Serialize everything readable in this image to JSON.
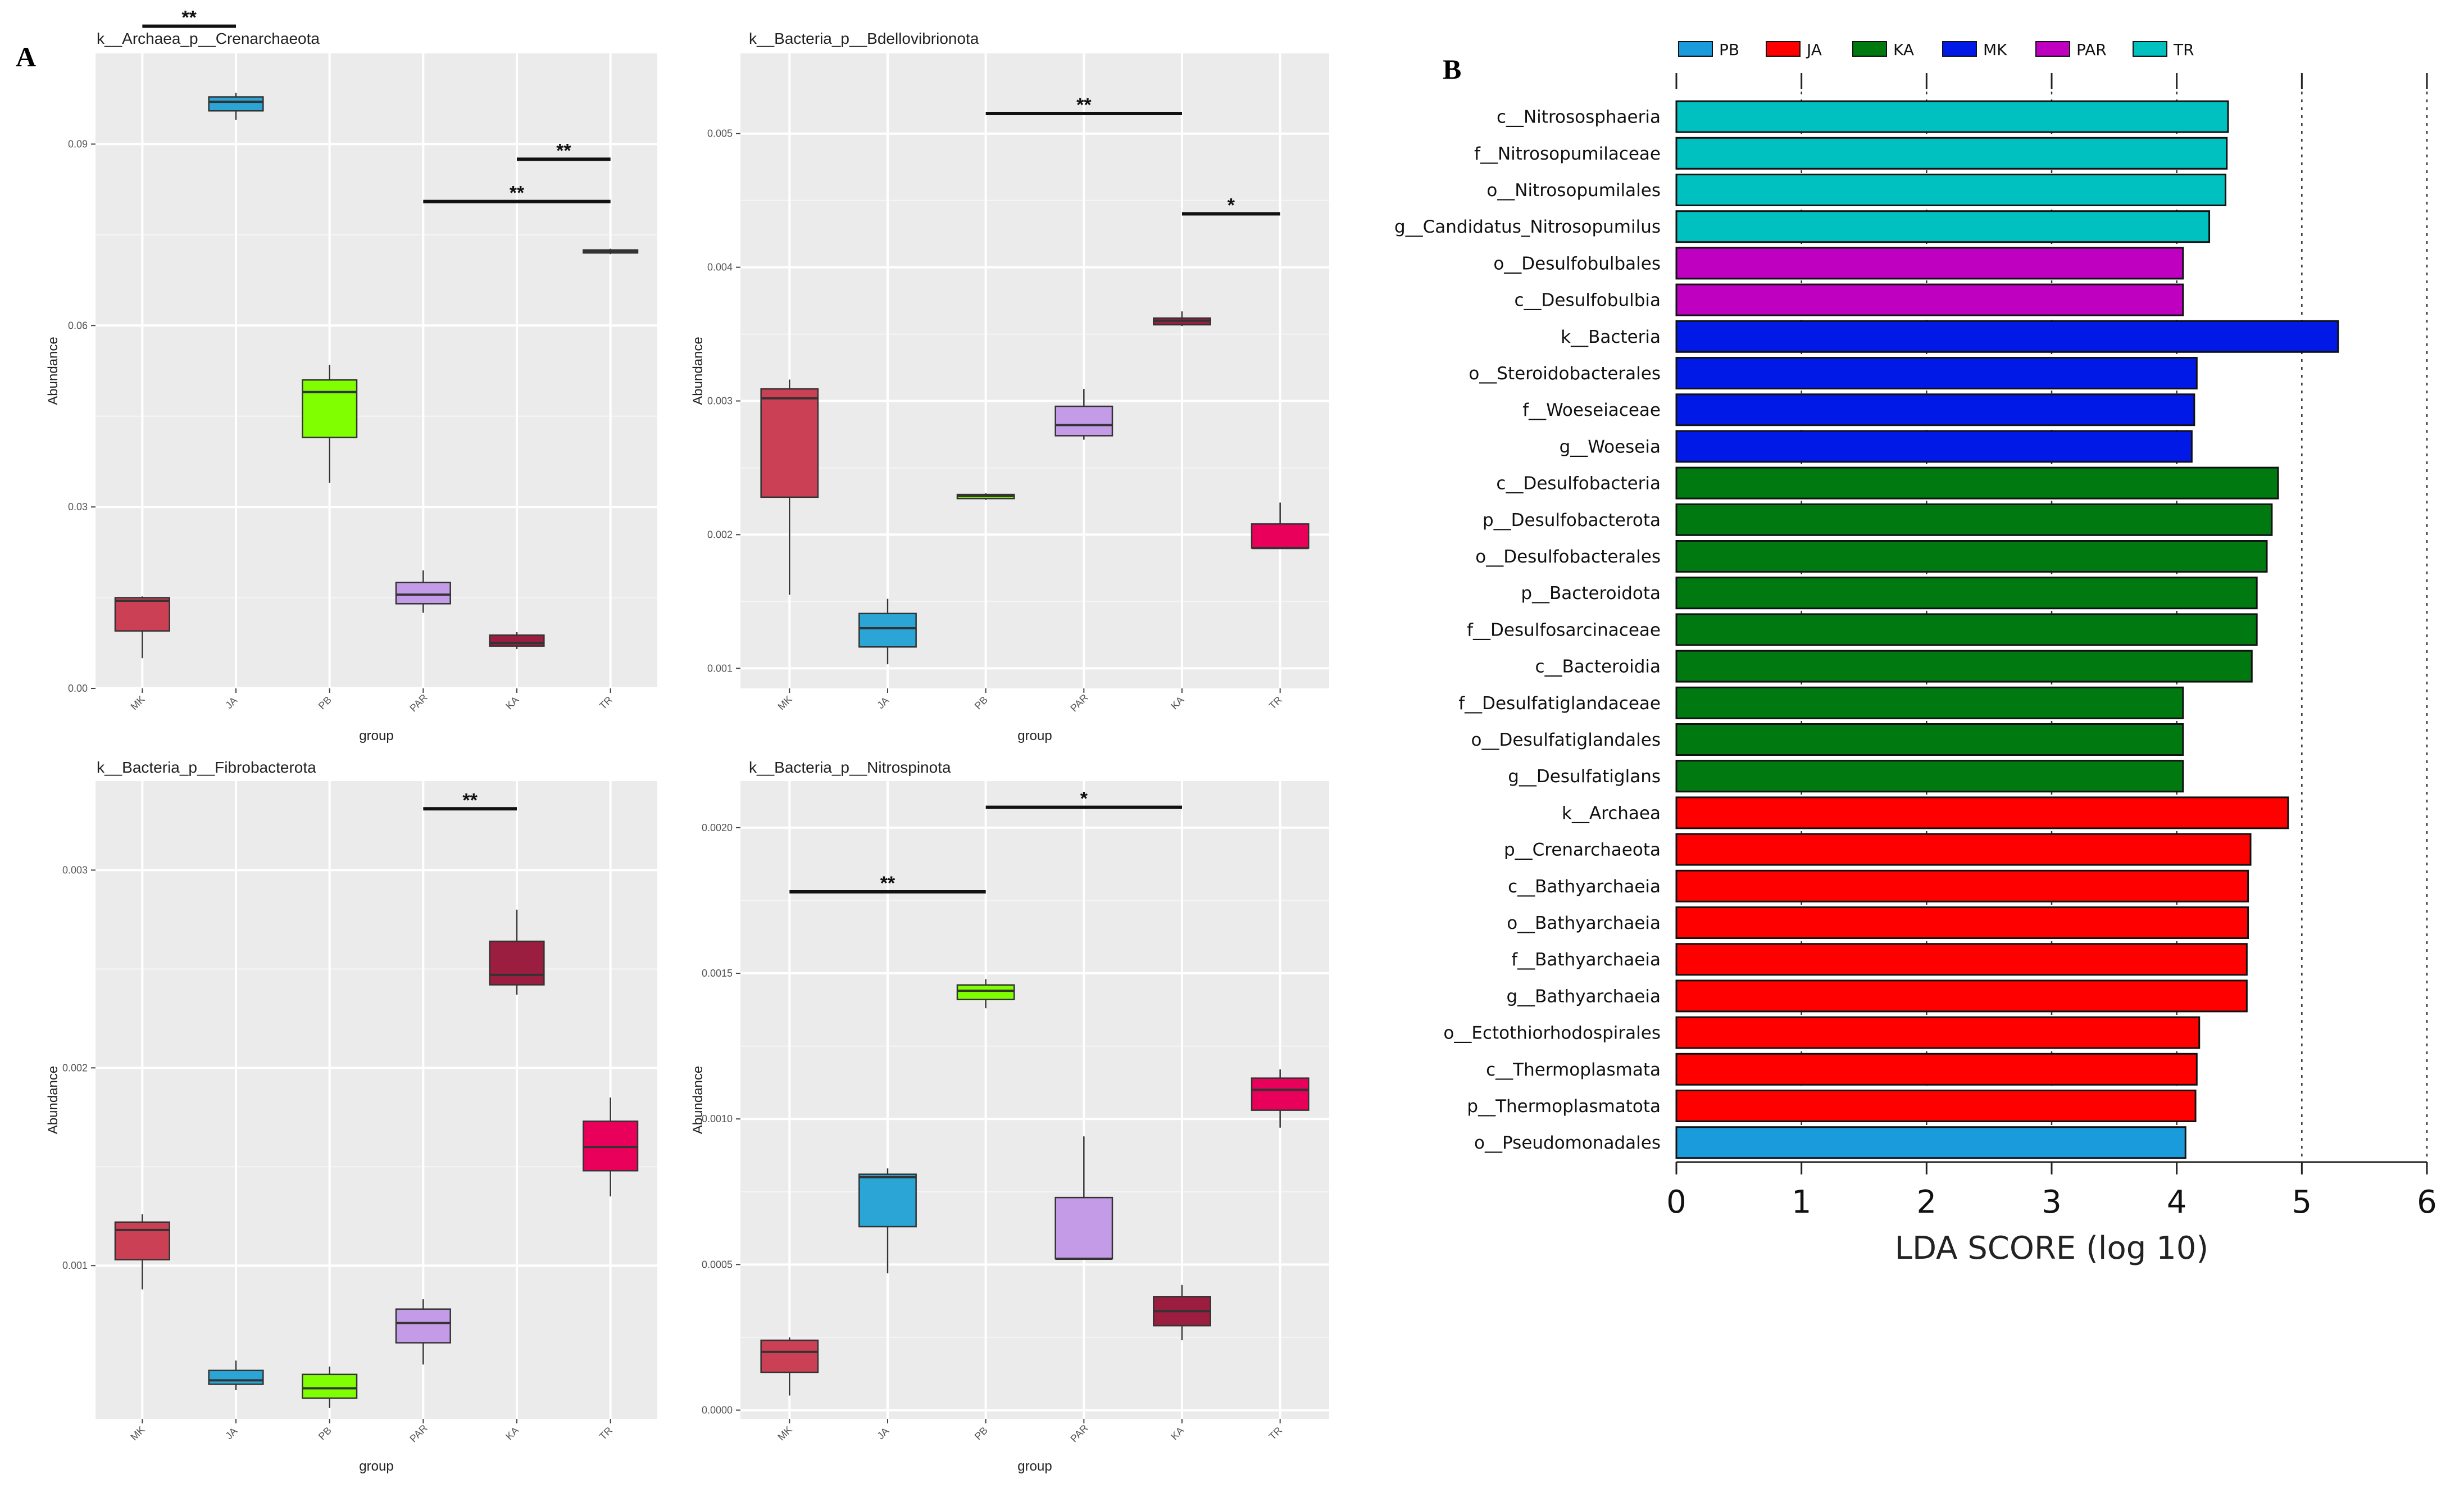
{
  "panel_labels": {
    "A": "A",
    "B": "B"
  },
  "chart_data": [
    {
      "type": "boxplot",
      "title": "k__Archaea_p__Crenarchaeota",
      "xlabel": "group",
      "ylabel": "Abundance",
      "categories": [
        "MK",
        "JA",
        "PB",
        "PAR",
        "KA",
        "TR"
      ],
      "colors": [
        "#cc4055",
        "#2aa5d5",
        "#7fff00",
        "#c39be6",
        "#9b1d3f",
        "#e8005a"
      ],
      "ylim": [
        0,
        0.105
      ],
      "yticks": [
        0,
        0.03,
        0.06,
        0.09
      ],
      "ytick_labels": [
        "0.00",
        "0.03",
        "0.06",
        "0.09"
      ],
      "boxes": [
        {
          "min": 0.005,
          "q1": 0.0095,
          "median": 0.0145,
          "q3": 0.015,
          "max": 0.0152
        },
        {
          "min": 0.094,
          "q1": 0.0955,
          "median": 0.097,
          "q3": 0.0978,
          "max": 0.0985
        },
        {
          "min": 0.034,
          "q1": 0.0415,
          "median": 0.049,
          "q3": 0.051,
          "max": 0.0535
        },
        {
          "min": 0.0125,
          "q1": 0.014,
          "median": 0.0155,
          "q3": 0.0175,
          "max": 0.0195
        },
        {
          "min": 0.0065,
          "q1": 0.007,
          "median": 0.0075,
          "q3": 0.0088,
          "max": 0.0093
        },
        {
          "min": 0.0718,
          "q1": 0.072,
          "median": 0.0723,
          "q3": 0.0725,
          "max": 0.0727
        }
      ],
      "significance": [
        {
          "from": "MK",
          "to": "JA",
          "label": "**",
          "y": 0.1095
        },
        {
          "from": "KA",
          "to": "TR",
          "label": "**",
          "y": 0.0875
        },
        {
          "from": "PAR",
          "to": "TR",
          "label": "**",
          "y": 0.0805
        }
      ]
    },
    {
      "type": "boxplot",
      "title": "k__Bacteria_p__Bdellovibrionota",
      "xlabel": "group",
      "ylabel": "Abundance",
      "categories": [
        "MK",
        "JA",
        "PB",
        "PAR",
        "KA",
        "TR"
      ],
      "colors": [
        "#cc4055",
        "#2aa5d5",
        "#7fff00",
        "#c39be6",
        "#9b1d3f",
        "#e8005a"
      ],
      "ylim": [
        0.00085,
        0.0056
      ],
      "yticks": [
        0.001,
        0.002,
        0.003,
        0.004,
        0.005
      ],
      "ytick_labels": [
        "0.001",
        "0.002",
        "0.003",
        "0.004",
        "0.005"
      ],
      "boxes": [
        {
          "min": 0.00155,
          "q1": 0.00228,
          "median": 0.00302,
          "q3": 0.00309,
          "max": 0.00316
        },
        {
          "min": 0.00103,
          "q1": 0.00116,
          "median": 0.0013,
          "q3": 0.00141,
          "max": 0.00152
        },
        {
          "min": 0.00226,
          "q1": 0.00227,
          "median": 0.00229,
          "q3": 0.0023,
          "max": 0.00231
        },
        {
          "min": 0.00271,
          "q1": 0.00274,
          "median": 0.00282,
          "q3": 0.00296,
          "max": 0.00309
        },
        {
          "min": 0.00356,
          "q1": 0.00357,
          "median": 0.0036,
          "q3": 0.00362,
          "max": 0.00367
        },
        {
          "min": 0.0019,
          "q1": 0.0019,
          "median": 0.0019,
          "q3": 0.00208,
          "max": 0.00224
        }
      ],
      "significance": [
        {
          "from": "PB",
          "to": "KA",
          "label": "**",
          "y": 0.00515
        },
        {
          "from": "KA",
          "to": "TR",
          "label": "*",
          "y": 0.0044
        }
      ]
    },
    {
      "type": "boxplot",
      "title": "k__Bacteria_p__Fibrobacterota",
      "xlabel": "group",
      "ylabel": "Abundance",
      "categories": [
        "MK",
        "JA",
        "PB",
        "PAR",
        "KA",
        "TR"
      ],
      "colors": [
        "#cc4055",
        "#2aa5d5",
        "#7fff00",
        "#c39be6",
        "#9b1d3f",
        "#e8005a"
      ],
      "ylim": [
        0.000225,
        0.00345
      ],
      "yticks": [
        0.001,
        0.002,
        0.003
      ],
      "ytick_labels": [
        "0.001",
        "0.002",
        "0.003"
      ],
      "boxes": [
        {
          "min": 0.00088,
          "q1": 0.00103,
          "median": 0.00118,
          "q3": 0.00122,
          "max": 0.00126
        },
        {
          "min": 0.00037,
          "q1": 0.0004,
          "median": 0.00042,
          "q3": 0.00047,
          "max": 0.00052
        },
        {
          "min": 0.00028,
          "q1": 0.00033,
          "median": 0.00038,
          "q3": 0.00045,
          "max": 0.00049
        },
        {
          "min": 0.0005,
          "q1": 0.00061,
          "median": 0.00071,
          "q3": 0.00078,
          "max": 0.00083
        },
        {
          "min": 0.00237,
          "q1": 0.00242,
          "median": 0.00247,
          "q3": 0.00264,
          "max": 0.0028
        },
        {
          "min": 0.00135,
          "q1": 0.00148,
          "median": 0.0016,
          "q3": 0.00173,
          "max": 0.00185
        }
      ],
      "significance": [
        {
          "from": "PAR",
          "to": "KA",
          "label": "**",
          "y": 0.00331
        }
      ]
    },
    {
      "type": "boxplot",
      "title": "k__Bacteria_p__Nitrospinota",
      "xlabel": "group",
      "ylabel": "Abundance",
      "categories": [
        "MK",
        "JA",
        "PB",
        "PAR",
        "KA",
        "TR"
      ],
      "colors": [
        "#cc4055",
        "#2aa5d5",
        "#7fff00",
        "#c39be6",
        "#9b1d3f",
        "#e8005a"
      ],
      "ylim": [
        -3e-05,
        0.00216
      ],
      "yticks": [
        0,
        0.0005,
        0.001,
        0.0015,
        0.002
      ],
      "ytick_labels": [
        "0.0000",
        "0.0005",
        "0.0010",
        "0.0015",
        "0.0020"
      ],
      "boxes": [
        {
          "min": 5e-05,
          "q1": 0.00013,
          "median": 0.0002,
          "q3": 0.00024,
          "max": 0.00025
        },
        {
          "min": 0.00047,
          "q1": 0.00063,
          "median": 0.0008,
          "q3": 0.00081,
          "max": 0.00083
        },
        {
          "min": 0.00138,
          "q1": 0.00141,
          "median": 0.00144,
          "q3": 0.00146,
          "max": 0.00148
        },
        {
          "min": 0.00052,
          "q1": 0.00052,
          "median": 0.00052,
          "q3": 0.00073,
          "max": 0.00094
        },
        {
          "min": 0.00024,
          "q1": 0.00029,
          "median": 0.00034,
          "q3": 0.00039,
          "max": 0.00043
        },
        {
          "min": 0.00097,
          "q1": 0.00103,
          "median": 0.0011,
          "q3": 0.00114,
          "max": 0.00117
        }
      ],
      "significance": [
        {
          "from": "MK",
          "to": "PB",
          "label": "**",
          "y": 0.00178
        },
        {
          "from": "PB",
          "to": "KA",
          "label": "*",
          "y": 0.00207
        }
      ]
    },
    {
      "type": "bar",
      "orientation": "horizontal",
      "xlabel": "LDA SCORE (log 10)",
      "xlim": [
        0,
        6
      ],
      "xticks": [
        0,
        1,
        2,
        3,
        4,
        5,
        6
      ],
      "legend": [
        {
          "name": "PB",
          "color": "#1a9bdc"
        },
        {
          "name": "JA",
          "color": "#ff0000"
        },
        {
          "name": "KA",
          "color": "#007a10"
        },
        {
          "name": "MK",
          "color": "#0019e6"
        },
        {
          "name": "PAR",
          "color": "#c000c0"
        },
        {
          "name": "TR",
          "color": "#00c0c0"
        }
      ],
      "bars": [
        {
          "label": "c__Nitrososphaeria",
          "value": 4.41,
          "group": "TR"
        },
        {
          "label": "f__Nitrosopumilaceae",
          "value": 4.4,
          "group": "TR"
        },
        {
          "label": "o__Nitrosopumilales",
          "value": 4.39,
          "group": "TR"
        },
        {
          "label": "g__Candidatus_Nitrosopumilus",
          "value": 4.26,
          "group": "TR"
        },
        {
          "label": "o__Desulfobulbales",
          "value": 4.05,
          "group": "PAR"
        },
        {
          "label": "c__Desulfobulbia",
          "value": 4.05,
          "group": "PAR"
        },
        {
          "label": "k__Bacteria",
          "value": 5.29,
          "group": "MK"
        },
        {
          "label": "o__Steroidobacterales",
          "value": 4.16,
          "group": "MK"
        },
        {
          "label": "f__Woeseiaceae",
          "value": 4.14,
          "group": "MK"
        },
        {
          "label": "g__Woeseia",
          "value": 4.12,
          "group": "MK"
        },
        {
          "label": "c__Desulfobacteria",
          "value": 4.81,
          "group": "KA"
        },
        {
          "label": "p__Desulfobacterota",
          "value": 4.76,
          "group": "KA"
        },
        {
          "label": "o__Desulfobacterales",
          "value": 4.72,
          "group": "KA"
        },
        {
          "label": "p__Bacteroidota",
          "value": 4.64,
          "group": "KA"
        },
        {
          "label": "f__Desulfosarcinaceae",
          "value": 4.64,
          "group": "KA"
        },
        {
          "label": "c__Bacteroidia",
          "value": 4.6,
          "group": "KA"
        },
        {
          "label": "f__Desulfatiglandaceae",
          "value": 4.05,
          "group": "KA"
        },
        {
          "label": "o__Desulfatiglandales",
          "value": 4.05,
          "group": "KA"
        },
        {
          "label": "g__Desulfatiglans",
          "value": 4.05,
          "group": "KA"
        },
        {
          "label": "k__Archaea",
          "value": 4.89,
          "group": "JA"
        },
        {
          "label": "p__Crenarchaeota",
          "value": 4.59,
          "group": "JA"
        },
        {
          "label": "c__Bathyarchaeia",
          "value": 4.57,
          "group": "JA"
        },
        {
          "label": "o__Bathyarchaeia",
          "value": 4.57,
          "group": "JA"
        },
        {
          "label": "f__Bathyarchaeia",
          "value": 4.56,
          "group": "JA"
        },
        {
          "label": "g__Bathyarchaeia",
          "value": 4.56,
          "group": "JA"
        },
        {
          "label": "o__Ectothiorhodospirales",
          "value": 4.18,
          "group": "JA"
        },
        {
          "label": "c__Thermoplasmata",
          "value": 4.16,
          "group": "JA"
        },
        {
          "label": "p__Thermoplasmatota",
          "value": 4.15,
          "group": "JA"
        },
        {
          "label": "o__Pseudomonadales",
          "value": 4.07,
          "group": "PB"
        }
      ]
    }
  ]
}
